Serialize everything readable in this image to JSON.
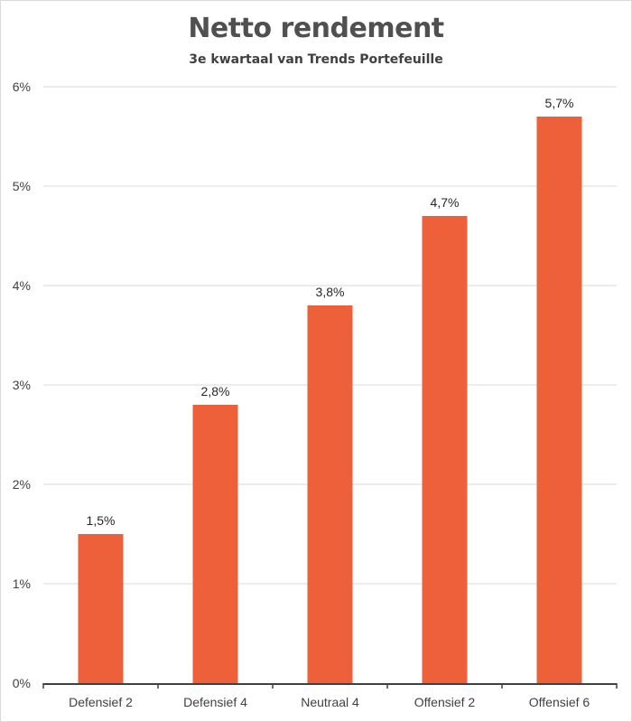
{
  "chart_data": {
    "type": "bar",
    "title": "Netto rendement",
    "subtitle": "3e kwartaal van Trends Portefeuille",
    "categories": [
      "Defensief 2",
      "Defensief 4",
      "Neutraal 4",
      "Offensief 2",
      "Offensief 6"
    ],
    "values": [
      1.5,
      2.8,
      3.8,
      4.7,
      5.7
    ],
    "data_labels": [
      "1,5%",
      "2,8%",
      "3,8%",
      "4,7%",
      "5,7%"
    ],
    "yticks": [
      0,
      1,
      2,
      3,
      4,
      5,
      6
    ],
    "ytick_labels": [
      "0%",
      "1%",
      "2%",
      "3%",
      "4%",
      "5%",
      "6%"
    ],
    "ylim": [
      0,
      6
    ],
    "grid": true,
    "bar_color": "#EE6039",
    "xlabel": "",
    "ylabel": ""
  }
}
